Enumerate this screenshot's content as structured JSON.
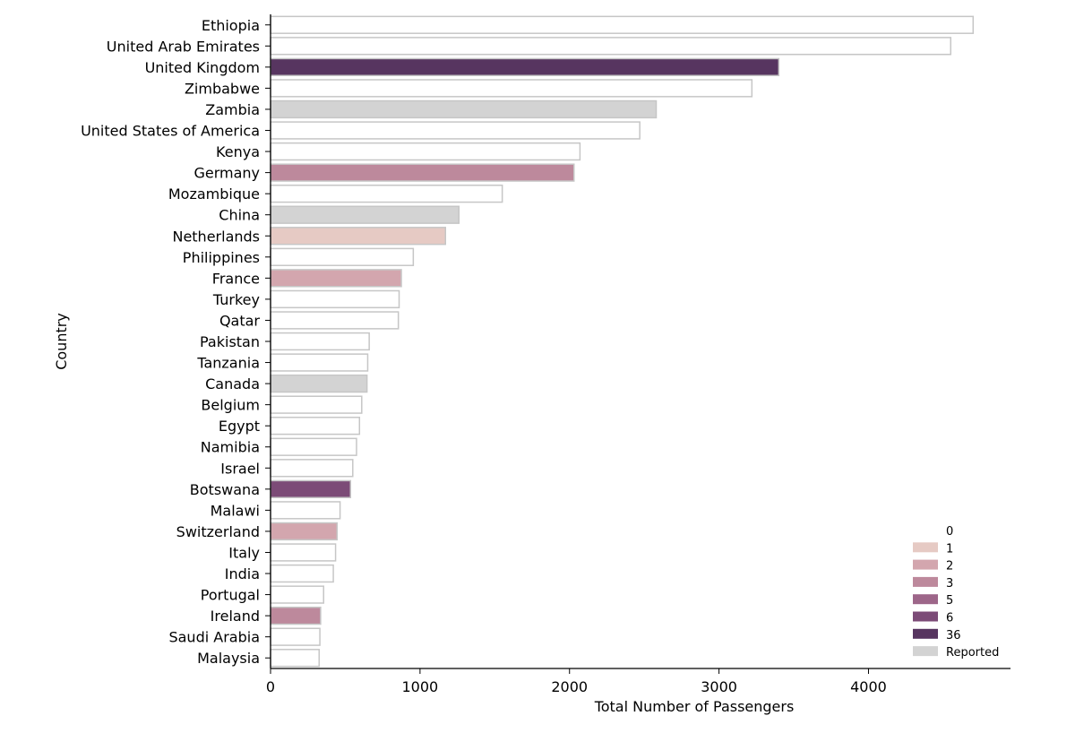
{
  "chart_data": {
    "type": "bar",
    "orientation": "horizontal",
    "xlabel": "Total Number of Passengers",
    "ylabel": "Country",
    "xlim": [
      0,
      4950
    ],
    "xticks": [
      0,
      1000,
      2000,
      3000,
      4000
    ],
    "grid": false,
    "legend_position": "bottom-right",
    "categories": [
      "Ethiopia",
      "United Arab Emirates",
      "United Kingdom",
      "Zimbabwe",
      "Zambia",
      "United States of America",
      "Kenya",
      "Germany",
      "Mozambique",
      "China",
      "Netherlands",
      "Philippines",
      "France",
      "Turkey",
      "Qatar",
      "Pakistan",
      "Tanzania",
      "Canada",
      "Belgium",
      "Egypt",
      "Namibia",
      "Israel",
      "Botswana",
      "Malawi",
      "Switzerland",
      "Italy",
      "India",
      "Portugal",
      "Ireland",
      "Saudi Arabia",
      "Malaysia"
    ],
    "values": [
      4700,
      4550,
      3400,
      3220,
      2580,
      2470,
      2070,
      2030,
      1550,
      1260,
      1170,
      955,
      875,
      860,
      855,
      660,
      650,
      645,
      610,
      595,
      575,
      550,
      535,
      465,
      445,
      435,
      420,
      355,
      335,
      330,
      325
    ],
    "groups": [
      "0",
      "0",
      "36",
      "0",
      "Reported",
      "0",
      "0",
      "3",
      "0",
      "Reported",
      "1",
      "0",
      "2",
      "0",
      "0",
      "0",
      "0",
      "Reported",
      "0",
      "0",
      "0",
      "0",
      "6",
      "0",
      "2",
      "0",
      "0",
      "0",
      "3",
      "0",
      "0"
    ],
    "legend": [
      {
        "label": "0",
        "color": "#ffffff"
      },
      {
        "label": "1",
        "color": "#e6cac4"
      },
      {
        "label": "2",
        "color": "#d3a6ae"
      },
      {
        "label": "3",
        "color": "#bd899c"
      },
      {
        "label": "5",
        "color": "#9d6689"
      },
      {
        "label": "6",
        "color": "#7c4b77"
      },
      {
        "label": "36",
        "color": "#573560"
      },
      {
        "label": "Reported",
        "color": "#d3d3d3"
      }
    ],
    "colors": {
      "bar_edge": "#c6c6c6",
      "axis": "#000000"
    }
  }
}
